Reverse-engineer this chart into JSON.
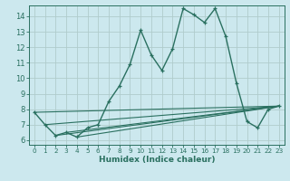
{
  "xlabel": "Humidex (Indice chaleur)",
  "bg_color": "#cce8ee",
  "grid_color": "#b0cccc",
  "line_color": "#2a7060",
  "xlim": [
    -0.5,
    23.5
  ],
  "ylim": [
    5.7,
    14.7
  ],
  "yticks": [
    6,
    7,
    8,
    9,
    10,
    11,
    12,
    13,
    14
  ],
  "xticks": [
    0,
    1,
    2,
    3,
    4,
    5,
    6,
    7,
    8,
    9,
    10,
    11,
    12,
    13,
    14,
    15,
    16,
    17,
    18,
    19,
    20,
    21,
    22,
    23
  ],
  "line1_x": [
    0,
    1,
    2,
    3,
    4,
    5,
    6,
    7,
    8,
    9,
    10,
    11,
    12,
    13,
    14,
    15,
    16,
    17,
    18,
    19,
    20,
    21,
    22,
    23
  ],
  "line1_y": [
    7.8,
    7.0,
    6.3,
    6.5,
    6.2,
    6.8,
    7.0,
    8.5,
    9.5,
    10.9,
    13.1,
    11.5,
    10.5,
    11.9,
    14.5,
    14.1,
    13.6,
    14.5,
    12.7,
    9.7,
    7.2,
    6.8,
    8.0,
    8.2
  ],
  "straight_lines": [
    {
      "x": [
        0,
        23
      ],
      "y": [
        7.8,
        8.2
      ]
    },
    {
      "x": [
        1,
        23
      ],
      "y": [
        7.0,
        8.2
      ]
    },
    {
      "x": [
        2,
        23
      ],
      "y": [
        6.3,
        8.2
      ]
    },
    {
      "x": [
        3,
        23
      ],
      "y": [
        6.5,
        8.2
      ]
    },
    {
      "x": [
        4,
        23
      ],
      "y": [
        6.2,
        8.2
      ]
    }
  ]
}
